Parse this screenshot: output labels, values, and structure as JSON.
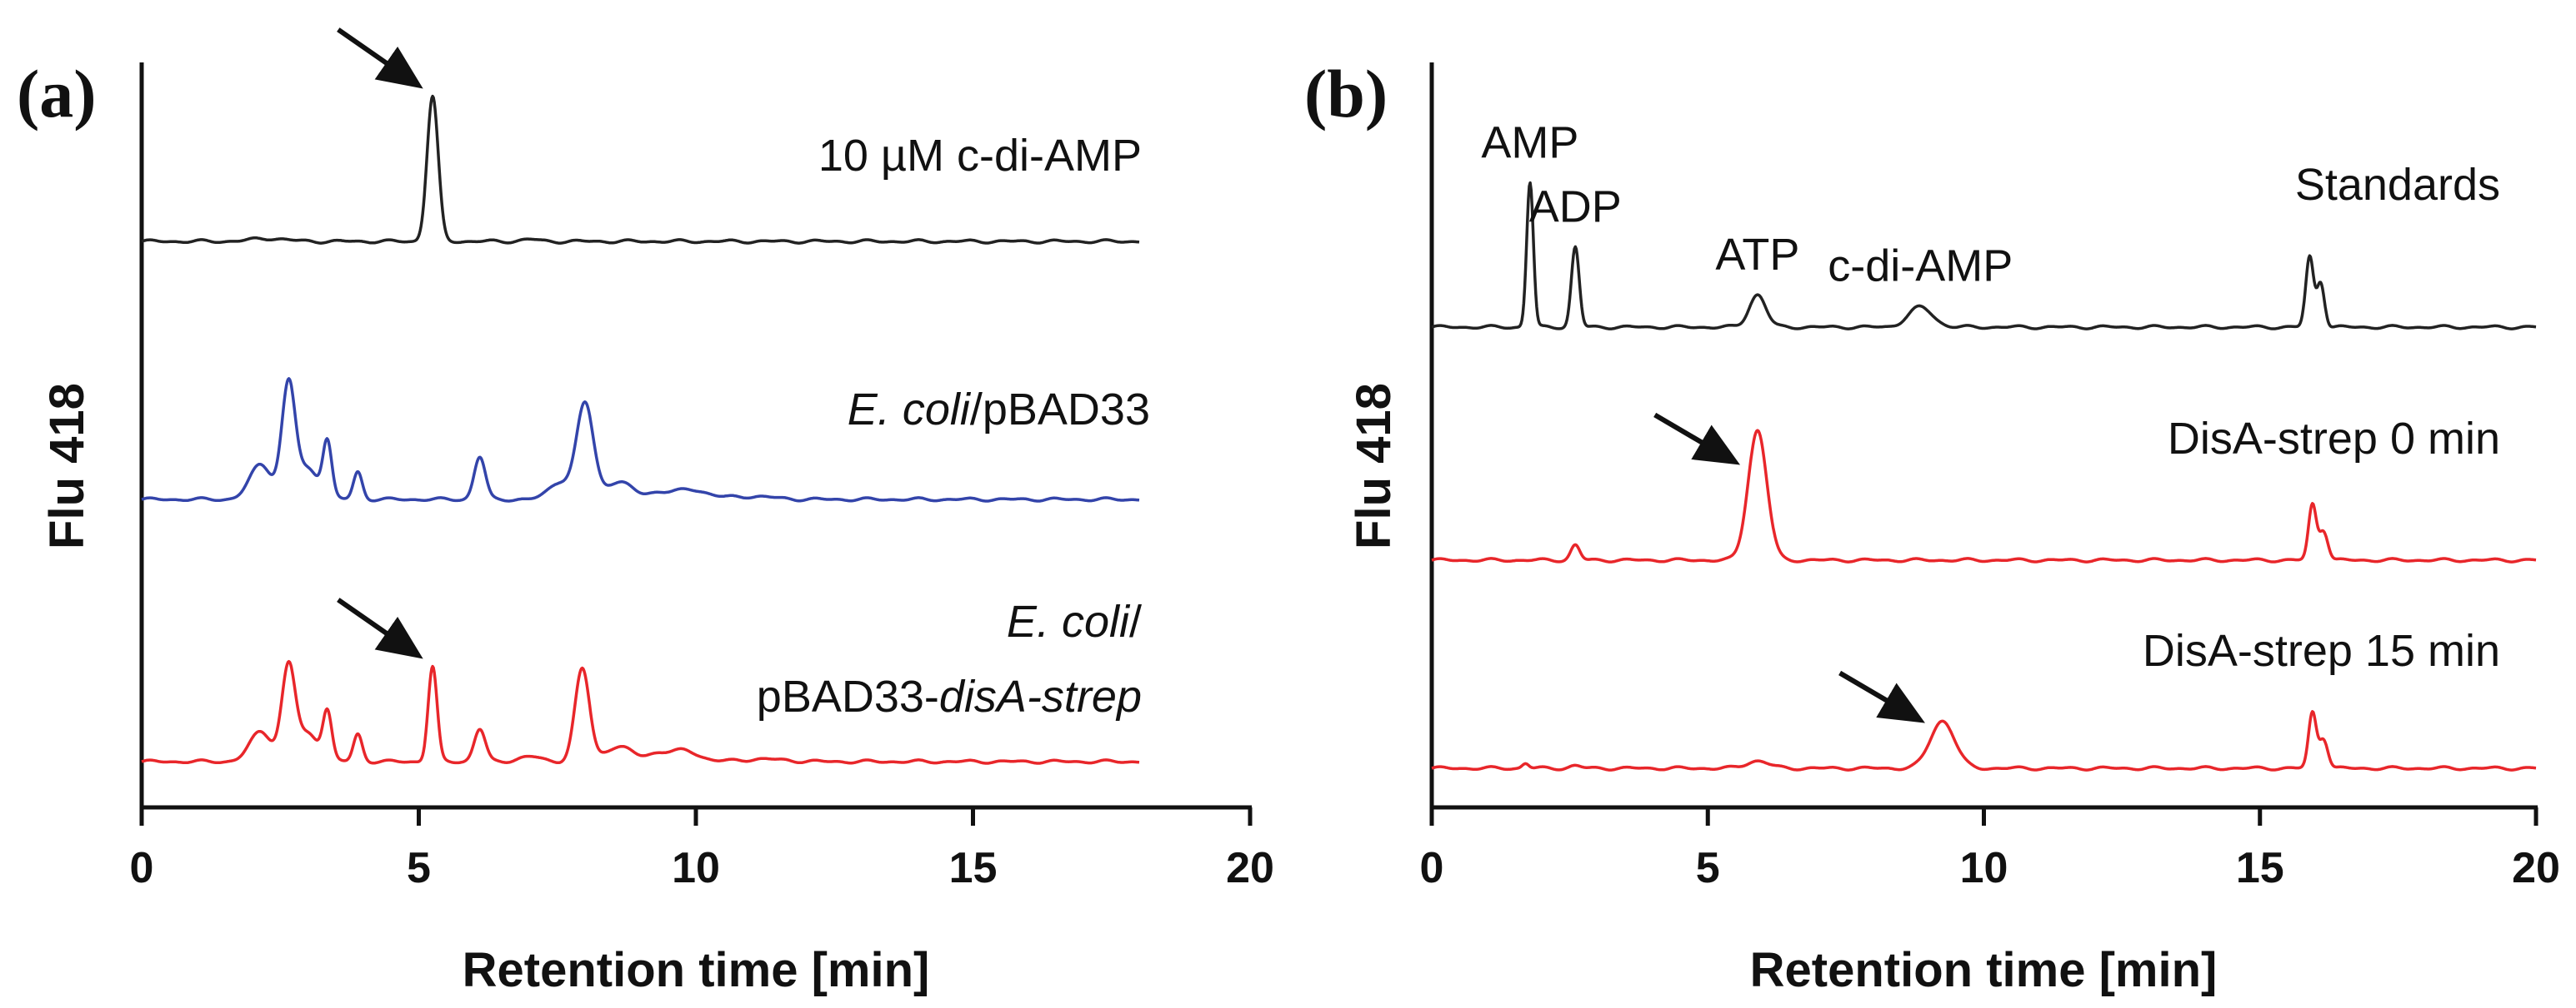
{
  "chart_data": [
    {
      "id": "a",
      "panel_label": "(a)",
      "type": "line",
      "title": "",
      "xlabel": "Retention time [min]",
      "ylabel": "Flu 418",
      "xlim": [
        0,
        20
      ],
      "xticks": [
        "0",
        "5",
        "10",
        "15",
        "20"
      ],
      "series": [
        {
          "name": "10 µM c-di-AMP",
          "label_parts": [
            {
              "text": "10 µM c-di-AMP",
              "italic": false
            }
          ],
          "color": "#222222",
          "baseline": 1.0,
          "x": [
            0.0,
            18.0
          ],
          "peaks": [
            {
              "x": 2.3,
              "height": 0.06,
              "width": 0.3
            },
            {
              "x": 5.25,
              "height": 2.9,
              "width": 0.1
            },
            {
              "x": 7.0,
              "height": 0.04,
              "width": 0.15
            }
          ]
        },
        {
          "name": "E. coli/pBAD33",
          "label_parts": [
            {
              "text": "E. coli",
              "italic": true
            },
            {
              "text": "/pBAD33",
              "italic": false
            }
          ],
          "color": "#3344aa",
          "baseline": 0.0,
          "x": [
            0.0,
            18.0
          ],
          "peaks": [
            {
              "x": 2.15,
              "height": 0.7,
              "width": 0.2
            },
            {
              "x": 2.65,
              "height": 2.25,
              "width": 0.12
            },
            {
              "x": 3.0,
              "height": 0.6,
              "width": 0.2
            },
            {
              "x": 3.35,
              "height": 1.1,
              "width": 0.08
            },
            {
              "x": 3.9,
              "height": 0.55,
              "width": 0.08
            },
            {
              "x": 6.1,
              "height": 0.85,
              "width": 0.1
            },
            {
              "x": 7.55,
              "height": 0.35,
              "width": 0.2
            },
            {
              "x": 8.0,
              "height": 1.9,
              "width": 0.15
            },
            {
              "x": 8.6,
              "height": 0.35,
              "width": 0.25
            },
            {
              "x": 9.3,
              "height": 0.12,
              "width": 0.2
            },
            {
              "x": 9.9,
              "height": 0.2,
              "width": 0.3
            },
            {
              "x": 11.0,
              "height": 0.06,
              "width": 0.4
            }
          ]
        },
        {
          "name": "E. coli/pBAD33-disA-strep",
          "label_parts": [
            {
              "text": "E. coli",
              "italic": true
            },
            {
              "text": "/",
              "italic": false
            }
          ],
          "label_parts_2": [
            {
              "text": "pBAD33-",
              "italic": false
            },
            {
              "text": "disA-strep",
              "italic": true
            }
          ],
          "color": "#e8262a",
          "baseline": -1.0,
          "x": [
            0.0,
            18.0
          ],
          "peaks": [
            {
              "x": 2.15,
              "height": 0.6,
              "width": 0.2
            },
            {
              "x": 2.65,
              "height": 1.85,
              "width": 0.12
            },
            {
              "x": 3.0,
              "height": 0.55,
              "width": 0.2
            },
            {
              "x": 3.35,
              "height": 0.95,
              "width": 0.08
            },
            {
              "x": 3.9,
              "height": 0.55,
              "width": 0.08
            },
            {
              "x": 5.25,
              "height": 1.9,
              "width": 0.08
            },
            {
              "x": 6.1,
              "height": 0.65,
              "width": 0.1
            },
            {
              "x": 7.0,
              "height": 0.1,
              "width": 0.2
            },
            {
              "x": 7.95,
              "height": 1.85,
              "width": 0.13
            },
            {
              "x": 8.6,
              "height": 0.3,
              "width": 0.25
            },
            {
              "x": 9.3,
              "height": 0.15,
              "width": 0.2
            },
            {
              "x": 9.8,
              "height": 0.22,
              "width": 0.25
            },
            {
              "x": 11.2,
              "height": 0.05,
              "width": 0.4
            }
          ]
        }
      ],
      "annotations": [
        {
          "type": "arrow",
          "target_x": 5.05,
          "target_series": 0,
          "note": "c-di-AMP peak"
        },
        {
          "type": "arrow",
          "target_x": 5.05,
          "target_series": 2,
          "note": "c-di-AMP peak"
        }
      ]
    },
    {
      "id": "b",
      "panel_label": "(b)",
      "type": "line",
      "title": "",
      "xlabel": "Retention time [min]",
      "ylabel": "Flu 418",
      "xlim": [
        0,
        20
      ],
      "xticks": [
        "0",
        "5",
        "10",
        "15",
        "20"
      ],
      "series": [
        {
          "name": "Standards",
          "label_parts": [
            {
              "text": "Standards",
              "italic": false
            }
          ],
          "color": "#222222",
          "baseline": 1.0,
          "x": [
            0.0,
            20.0
          ],
          "peaks": [
            {
              "x": 1.78,
              "height": 2.9,
              "width": 0.06
            },
            {
              "x": 2.6,
              "height": 1.6,
              "width": 0.07
            },
            {
              "x": 5.9,
              "height": 0.65,
              "width": 0.15
            },
            {
              "x": 8.85,
              "height": 0.4,
              "width": 0.22
            },
            {
              "x": 15.9,
              "height": 1.4,
              "width": 0.07
            },
            {
              "x": 16.1,
              "height": 0.9,
              "width": 0.07
            }
          ],
          "peak_labels": [
            {
              "text": "AMP",
              "x": 1.78
            },
            {
              "text": "ADP",
              "x": 2.6
            },
            {
              "text": "ATP",
              "x": 5.9
            },
            {
              "text": "c-di-AMP",
              "x": 8.85
            }
          ]
        },
        {
          "name": "DisA-strep 0 min",
          "label_parts": [
            {
              "text": "DisA-strep 0 min",
              "italic": false
            }
          ],
          "color": "#e8262a",
          "baseline": 0.0,
          "x": [
            0.0,
            20.0
          ],
          "peaks": [
            {
              "x": 2.6,
              "height": 0.3,
              "width": 0.08
            },
            {
              "x": 5.9,
              "height": 2.6,
              "width": 0.17
            },
            {
              "x": 15.95,
              "height": 1.1,
              "width": 0.07
            },
            {
              "x": 16.15,
              "height": 0.6,
              "width": 0.08
            }
          ]
        },
        {
          "name": "DisA-strep 15 min",
          "label_parts": [
            {
              "text": "DisA-strep 15 min",
              "italic": false
            }
          ],
          "color": "#e8262a",
          "baseline": -1.0,
          "x": [
            0.0,
            20.0
          ],
          "peaks": [
            {
              "x": 1.7,
              "height": 0.1,
              "width": 0.06
            },
            {
              "x": 2.6,
              "height": 0.05,
              "width": 0.1
            },
            {
              "x": 5.9,
              "height": 0.15,
              "width": 0.2
            },
            {
              "x": 9.25,
              "height": 0.95,
              "width": 0.22
            },
            {
              "x": 15.95,
              "height": 1.1,
              "width": 0.07
            },
            {
              "x": 16.15,
              "height": 0.6,
              "width": 0.08
            }
          ]
        }
      ],
      "annotations": [
        {
          "type": "arrow",
          "target_x": 5.55,
          "target_series": 1,
          "note": "ATP peak"
        },
        {
          "type": "arrow",
          "target_x": 8.9,
          "target_series": 2,
          "note": "c-di-AMP peak"
        }
      ]
    }
  ]
}
